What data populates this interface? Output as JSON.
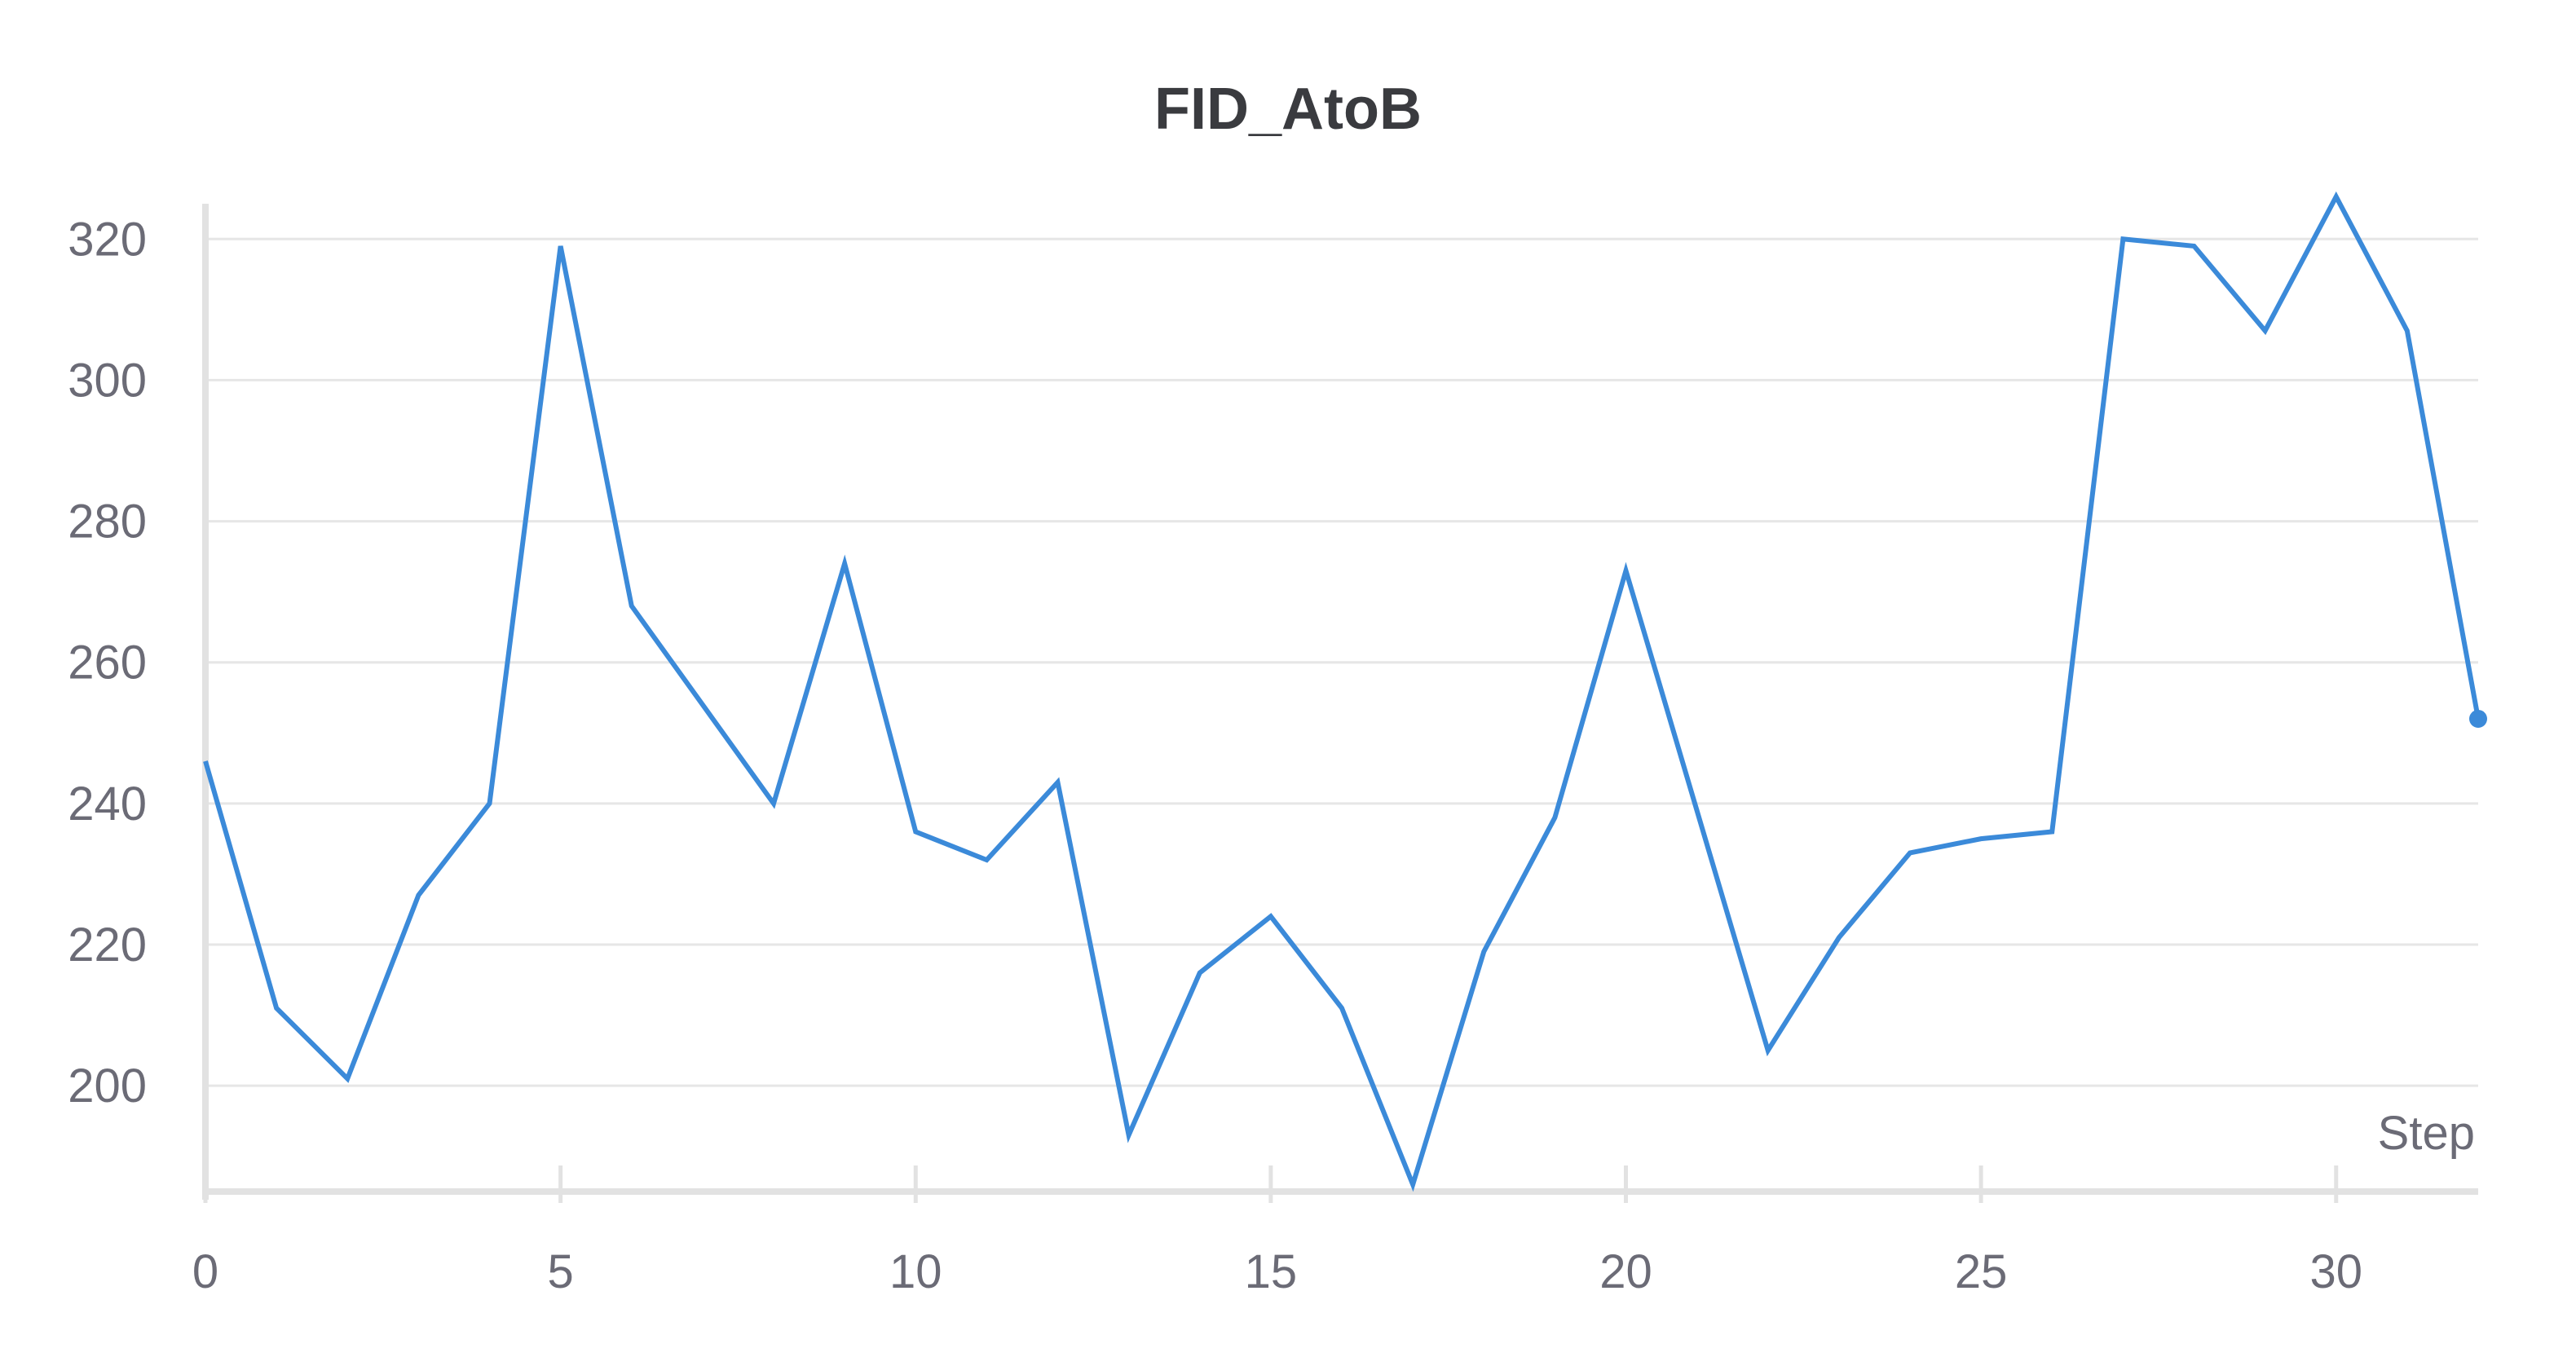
{
  "chart_data": {
    "type": "line",
    "title": "FID_AtoB",
    "xlabel": "Step",
    "ylabel": "",
    "xlim": [
      0,
      32
    ],
    "ylim": [
      185,
      325
    ],
    "x_ticks": [
      0,
      5,
      10,
      15,
      20,
      25,
      30
    ],
    "y_ticks": [
      200,
      220,
      240,
      260,
      280,
      300,
      320
    ],
    "grid": "horizontal",
    "legend": "none",
    "series": [
      {
        "color": "#3b8ad9",
        "x": [
          0,
          1,
          2,
          3,
          4,
          5,
          6,
          7,
          8,
          9,
          10,
          11,
          12,
          13,
          14,
          15,
          16,
          17,
          18,
          19,
          20,
          21,
          22,
          23,
          24,
          25,
          26,
          27,
          28,
          29,
          30,
          31,
          32
        ],
        "values": [
          246,
          211,
          201,
          227,
          240,
          319,
          268,
          254,
          240,
          274,
          236,
          232,
          243,
          193,
          216,
          224,
          211,
          186,
          219,
          238,
          273,
          239,
          205,
          221,
          233,
          235,
          236,
          320,
          319,
          307,
          326,
          307,
          252
        ]
      }
    ]
  }
}
